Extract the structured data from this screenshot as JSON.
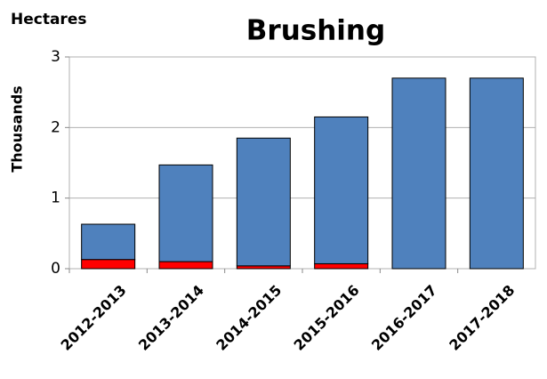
{
  "chart_data": {
    "type": "stacked_bar",
    "title": "Brushing",
    "unit_label": "Hectares",
    "ylabel": "Thousands",
    "categories": [
      "2012-2013",
      "2013-2014",
      "2014-2015",
      "2015-2016",
      "2016-2017",
      "2017-2018"
    ],
    "series": [
      {
        "color": "#ff0000",
        "values": [
          0.13,
          0.1,
          0.04,
          0.07,
          0,
          0
        ]
      },
      {
        "color": "#4f81bd",
        "values": [
          0.5,
          1.37,
          1.81,
          2.08,
          2.7,
          2.7
        ]
      }
    ],
    "ylim": [
      0,
      3
    ],
    "yticks": [
      0,
      1,
      2,
      3
    ],
    "grid": true
  }
}
